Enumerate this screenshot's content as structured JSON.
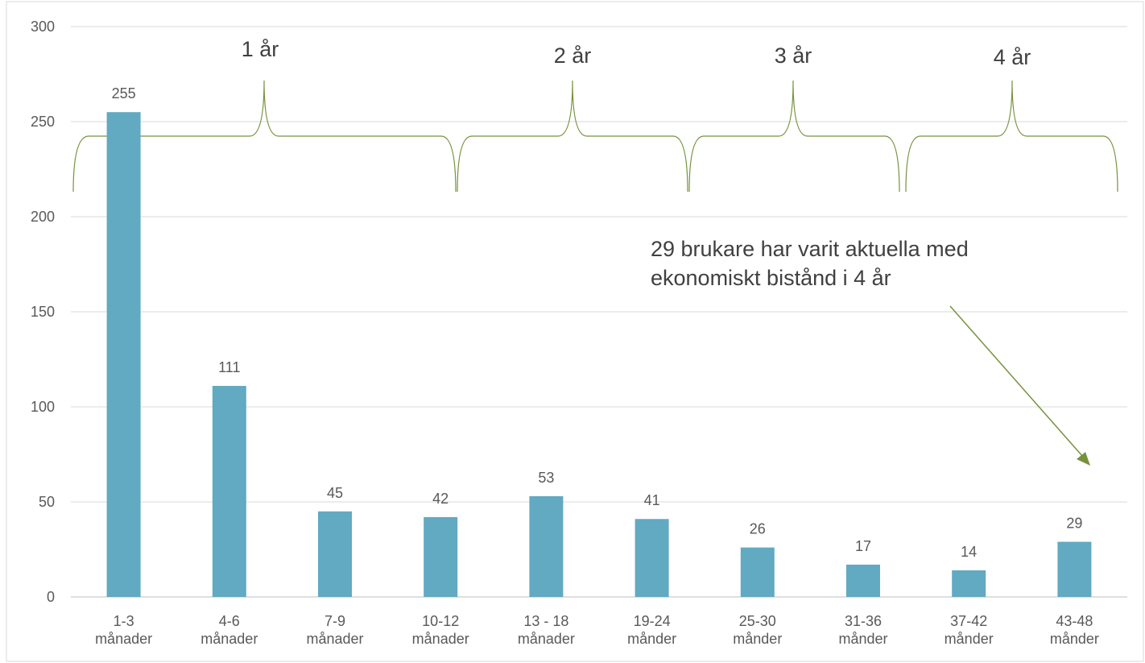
{
  "chart_data": {
    "type": "bar",
    "categories": [
      "1-3\nmånader",
      "4-6\nmånader",
      "7-9\nmånader",
      "10-12\nmånader",
      "13 - 18\nmånader",
      "19-24\nmånder",
      "25-30\nmånder",
      "31-36\nmånder",
      "37-42\nmånder",
      "43-48\nmånder"
    ],
    "values": [
      255,
      111,
      45,
      42,
      53,
      41,
      26,
      17,
      14,
      29
    ],
    "color": "#62a9c2",
    "ylim": [
      0,
      300
    ],
    "yticks": [
      0,
      50,
      100,
      150,
      200,
      250,
      300
    ],
    "grid": true,
    "annotations": [
      "1 år",
      "2 år",
      "3 år",
      "4 år",
      "29 brukare har varit aktuella med\nekonomiskt bistånd i 4 år"
    ]
  }
}
